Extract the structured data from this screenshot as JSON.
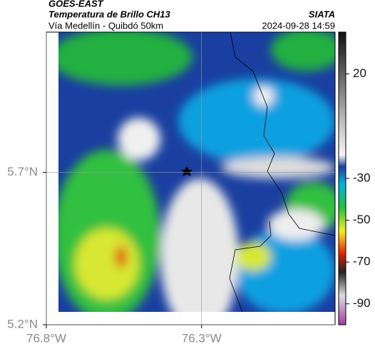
{
  "header": {
    "title": "GOES-EAST",
    "subtitle": "Temperatura de Brillo CH13",
    "region": "Vía Medellín - Quibdó 50km",
    "source": "SIATA",
    "timestamp": "2024-09-28 14:59"
  },
  "map": {
    "xlim": [
      -76.8,
      -75.87
    ],
    "ylim": [
      5.2,
      6.16
    ],
    "xticks": [
      {
        "value": -76.8,
        "label": "76.8°W"
      },
      {
        "value": -76.3,
        "label": "76.3°W"
      }
    ],
    "yticks": [
      {
        "value": 5.2,
        "label": "5.2°N"
      },
      {
        "value": 5.7,
        "label": "5.7°N"
      }
    ]
  },
  "colorbar": {
    "lim": [
      -100,
      40
    ],
    "ticks": [
      20,
      -30,
      -50,
      -70,
      -90
    ]
  }
}
